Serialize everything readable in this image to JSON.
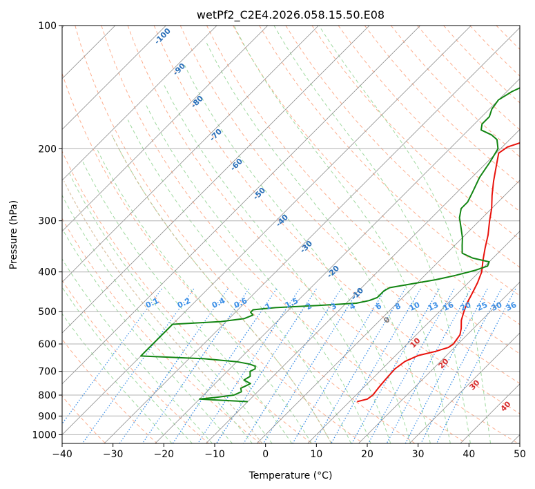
{
  "chart_data": {
    "type": "line",
    "title": "wetPf2_C2E4.2026.058.15.50.E08",
    "xlabel": "Temperature (°C)",
    "ylabel": "Pressure (hPa)",
    "xlim": [
      -40,
      50
    ],
    "ylim": [
      1050,
      100
    ],
    "x_ticks": [
      "−40",
      "−30",
      "−20",
      "−10",
      "0",
      "10",
      "20",
      "30",
      "40",
      "50"
    ],
    "x_tick_values": [
      -40,
      -30,
      -20,
      -10,
      0,
      10,
      20,
      30,
      40,
      50
    ],
    "y_ticks": [
      "100",
      "200",
      "300",
      "400",
      "500",
      "600",
      "700",
      "800",
      "900",
      "1000"
    ],
    "y_tick_values": [
      100,
      200,
      300,
      400,
      500,
      600,
      700,
      800,
      900,
      1000
    ],
    "series": [
      {
        "name": "temperature",
        "color": "#e8120c",
        "points": [
          [
            11.5,
            830
          ],
          [
            13,
            818
          ],
          [
            13.3,
            800
          ],
          [
            13,
            770
          ],
          [
            12.7,
            730
          ],
          [
            12.5,
            690
          ],
          [
            13,
            662
          ],
          [
            14.5,
            640
          ],
          [
            17,
            626
          ],
          [
            18.8,
            612
          ],
          [
            19.1,
            600
          ],
          [
            18.6,
            570
          ],
          [
            17.6,
            550
          ],
          [
            16,
            525
          ],
          [
            14.8,
            500
          ],
          [
            13.7,
            475
          ],
          [
            12.8,
            450
          ],
          [
            11.8,
            425
          ],
          [
            10.5,
            400
          ],
          [
            8.5,
            375
          ],
          [
            6.5,
            350
          ],
          [
            4.5,
            325
          ],
          [
            2,
            300
          ],
          [
            0,
            280
          ],
          [
            -2.5,
            260
          ],
          [
            -5,
            240
          ],
          [
            -7.5,
            220
          ],
          [
            -9.5,
            205
          ],
          [
            -9,
            198
          ],
          [
            -6,
            190
          ],
          [
            -2,
            182
          ],
          [
            3,
            173
          ],
          [
            7,
            164
          ],
          [
            9.5,
            155
          ],
          [
            10.5,
            148
          ],
          [
            10.7,
            140
          ],
          [
            10.5,
            130
          ],
          [
            10.2,
            120
          ],
          [
            11,
            110
          ],
          [
            13,
            100
          ]
        ]
      },
      {
        "name": "dewpoint",
        "color": "#128512",
        "points": [
          [
            -10,
            830
          ],
          [
            -17,
            822
          ],
          [
            -20,
            818
          ],
          [
            -17,
            810
          ],
          [
            -14,
            800
          ],
          [
            -13.2,
            785
          ],
          [
            -14,
            770
          ],
          [
            -13,
            750
          ],
          [
            -15,
            735
          ],
          [
            -14.5,
            720
          ],
          [
            -15.5,
            700
          ],
          [
            -15,
            690
          ],
          [
            -15.5,
            680
          ],
          [
            -17,
            672
          ],
          [
            -20,
            663
          ],
          [
            -27,
            652
          ],
          [
            -40,
            642
          ],
          [
            -40,
            537
          ],
          [
            -31,
            529
          ],
          [
            -27,
            520
          ],
          [
            -26,
            510
          ],
          [
            -27,
            502
          ],
          [
            -27,
            495
          ],
          [
            -23,
            489
          ],
          [
            -15,
            483
          ],
          [
            -8,
            477
          ],
          [
            -6,
            470
          ],
          [
            -5,
            462
          ],
          [
            -5,
            445
          ],
          [
            -4.5,
            437
          ],
          [
            -1,
            428
          ],
          [
            3,
            418
          ],
          [
            6,
            408
          ],
          [
            9,
            396
          ],
          [
            10.5,
            387
          ],
          [
            10,
            378
          ],
          [
            6,
            370
          ],
          [
            3,
            360
          ],
          [
            1.5,
            345
          ],
          [
            0,
            330
          ],
          [
            -2.5,
            310
          ],
          [
            -4.5,
            295
          ],
          [
            -6,
            280
          ],
          [
            -6,
            270
          ],
          [
            -7,
            255
          ],
          [
            -8.5,
            235
          ],
          [
            -9.5,
            215
          ],
          [
            -10.5,
            200
          ],
          [
            -12.5,
            190
          ],
          [
            -14.5,
            185
          ],
          [
            -17.5,
            180
          ],
          [
            -18.5,
            174
          ],
          [
            -18.5,
            167
          ],
          [
            -19.5,
            160
          ],
          [
            -20,
            152
          ],
          [
            -19,
            145
          ],
          [
            -17,
            138
          ],
          [
            -14,
            130
          ],
          [
            -11,
            120
          ],
          [
            -8.5,
            110
          ],
          [
            -6,
            100
          ]
        ]
      }
    ],
    "isotherm_labels": [
      "-100",
      "-90",
      "-80",
      "-70",
      "-60",
      "-50",
      "-40",
      "-30",
      "-20",
      "-10"
    ],
    "isotherm_label_values": [
      -100,
      -90,
      -80,
      -70,
      -60,
      -50,
      -40,
      -30,
      -20,
      -10
    ],
    "mixing_ratio_labels": [
      "0.1",
      "0.2",
      "0.4",
      "0.6",
      "1",
      "1.5",
      "2",
      "3",
      "4",
      "6",
      "8",
      "10",
      "13",
      "16",
      "20",
      "25",
      "30",
      "36"
    ],
    "mixing_ratio_values": [
      0.1,
      0.2,
      0.4,
      0.6,
      1,
      1.5,
      2,
      3,
      4,
      6,
      8,
      10,
      13,
      16,
      20,
      25,
      30,
      36
    ],
    "zero_label": "0",
    "warm_labels": [
      "10",
      "20",
      "30",
      "40"
    ],
    "warm_label_values": [
      10,
      20,
      30,
      40
    ],
    "colors": {
      "temperature": "#e8120c",
      "dewpoint": "#128512",
      "grid": "#b0b0b0",
      "isotherm": "#8c8c8c",
      "dry_adiabat": "#fdae8e",
      "moist_adiabat": "#9fd99f",
      "mixing_ratio": "#3a8ee6",
      "iso_label": "#2a6fb8",
      "warm_label": "#d62c2c",
      "zero_label": "#7d7d7d",
      "brown": "#d2b48c"
    }
  }
}
